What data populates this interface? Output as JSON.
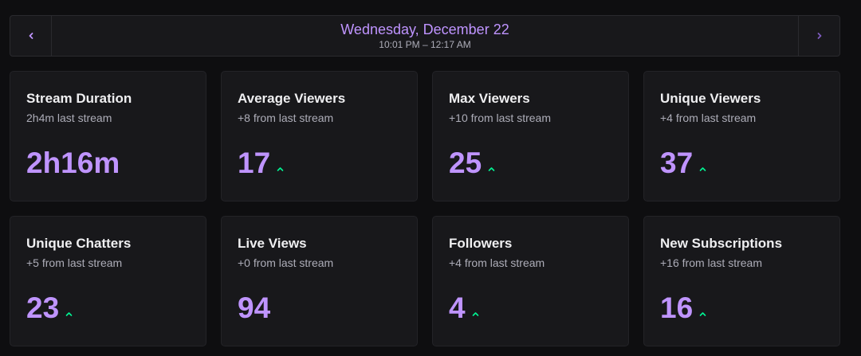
{
  "header": {
    "date": "Wednesday, December 22",
    "time_range": "10:01 PM – 12:17 AM",
    "prev_icon": "chevron-left-icon",
    "next_icon": "chevron-right-icon"
  },
  "colors": {
    "accent": "#bf94ff",
    "trend_up": "#00f593",
    "card_bg": "#18181b",
    "page_bg": "#0e0e10"
  },
  "stats": [
    {
      "title": "Stream Duration",
      "subtitle": "2h4m last stream",
      "value": "2h16m",
      "trend": "none"
    },
    {
      "title": "Average Viewers",
      "subtitle": "+8 from last stream",
      "value": "17",
      "trend": "up"
    },
    {
      "title": "Max Viewers",
      "subtitle": "+10 from last stream",
      "value": "25",
      "trend": "up"
    },
    {
      "title": "Unique Viewers",
      "subtitle": "+4 from last stream",
      "value": "37",
      "trend": "up"
    },
    {
      "title": "Unique Chatters",
      "subtitle": "+5 from last stream",
      "value": "23",
      "trend": "up"
    },
    {
      "title": "Live Views",
      "subtitle": "+0 from last stream",
      "value": "94",
      "trend": "none"
    },
    {
      "title": "Followers",
      "subtitle": "+4 from last stream",
      "value": "4",
      "trend": "up"
    },
    {
      "title": "New Subscriptions",
      "subtitle": "+16 from last stream",
      "value": "16",
      "trend": "up"
    }
  ]
}
